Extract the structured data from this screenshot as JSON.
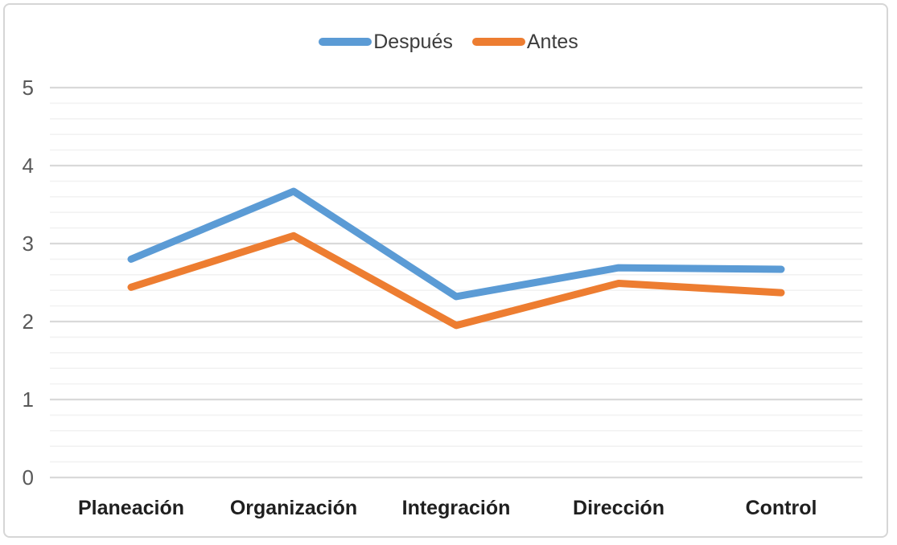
{
  "chart_data": {
    "type": "line",
    "title": "",
    "xlabel": "",
    "ylabel": "",
    "categories": [
      "Planeación",
      "Organización",
      "Integración",
      "Dirección",
      "Control"
    ],
    "series": [
      {
        "name": "Después",
        "color": "#5B9BD5",
        "values": [
          2.8,
          3.67,
          2.32,
          2.69,
          2.67
        ]
      },
      {
        "name": "Antes",
        "color": "#ED7D31",
        "values": [
          2.44,
          3.1,
          1.95,
          2.49,
          2.37
        ]
      }
    ],
    "ylim": [
      0,
      5
    ],
    "y_ticks": [
      0,
      1,
      2,
      3,
      4,
      5
    ],
    "y_minor_step": 0.2,
    "grid": true,
    "legend_position": "top-center"
  },
  "colors": {
    "major_grid": "#D9D9D9",
    "minor_grid": "#F2F2F2",
    "axis_label": "#595959",
    "category_label": "#1F1F1F",
    "legend_text": "#3C3C3C",
    "frame_border": "#D6D6D6",
    "background": "#FFFFFF"
  }
}
